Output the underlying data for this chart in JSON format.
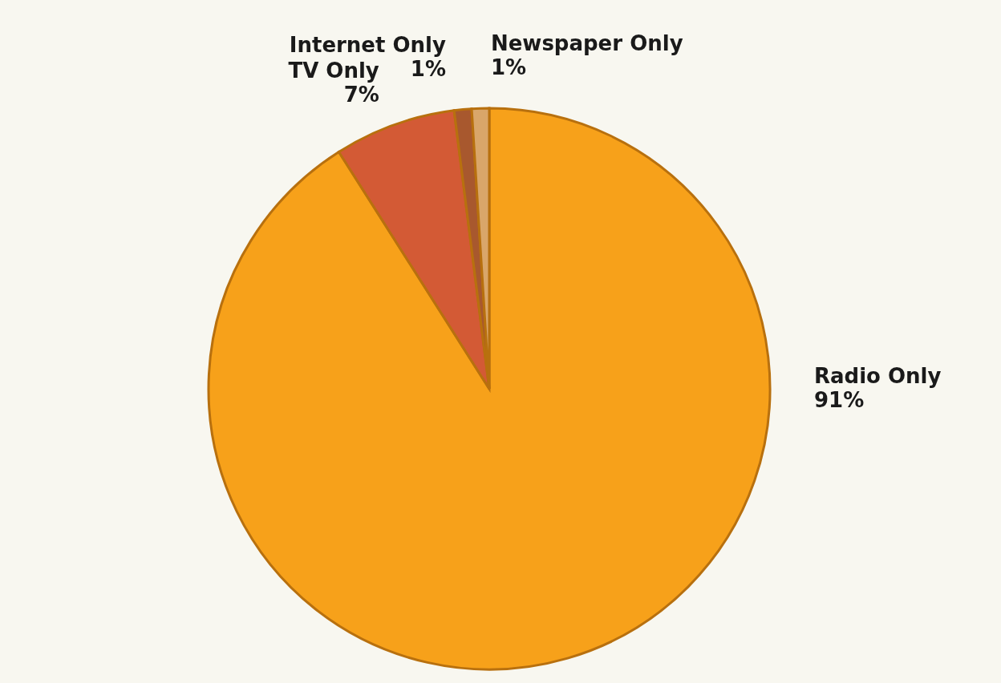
{
  "chart_data": {
    "type": "pie",
    "categories": [
      "Radio Only",
      "TV Only",
      "Internet Only",
      "Newspaper Only"
    ],
    "values": [
      91,
      7,
      1,
      1
    ],
    "value_labels": [
      "91%",
      "7%",
      "1%",
      "1%"
    ],
    "colors": [
      "#f7a11a",
      "#d35a35",
      "#a8582e",
      "#d9a66a"
    ]
  }
}
